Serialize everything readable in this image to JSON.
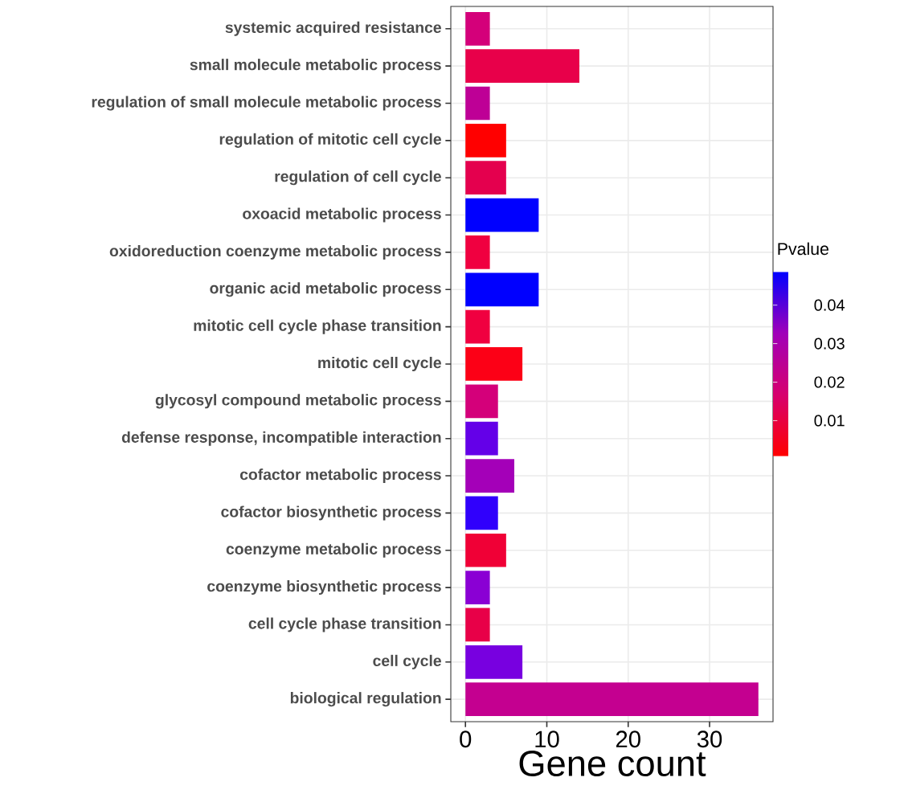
{
  "chart_data": {
    "type": "bar",
    "orientation": "horizontal",
    "xlabel": "Gene count",
    "clabel": "Pvalue",
    "categories": [
      "systemic acquired resistance",
      "small molecule metabolic process",
      "regulation of small molecule metabolic process",
      "regulation of mitotic cell cycle",
      "regulation of cell cycle",
      "oxoacid metabolic process",
      "oxidoreduction coenzyme metabolic process",
      "organic acid metabolic process",
      "mitotic cell cycle phase transition",
      "mitotic cell cycle",
      "glycosyl compound metabolic process",
      "defense response, incompatible interaction",
      "cofactor metabolic process",
      "cofactor biosynthetic process",
      "coenzyme metabolic process",
      "coenzyme biosynthetic process",
      "cell cycle phase transition",
      "cell cycle",
      "biological regulation"
    ],
    "values": [
      3,
      14,
      3,
      5,
      5,
      9,
      3,
      9,
      3,
      7,
      4,
      4,
      6,
      4,
      5,
      3,
      3,
      7,
      36
    ],
    "colors": [
      "#d4007a",
      "#e8004a",
      "#be0096",
      "#ff0000",
      "#e4004e",
      "#0000ff",
      "#f00040",
      "#0000ff",
      "#f00040",
      "#fc0016",
      "#d4007a",
      "#6400e8",
      "#a400b8",
      "#3000fc",
      "#f00036",
      "#8a00d4",
      "#e80048",
      "#7800e0",
      "#c40090"
    ],
    "xlim": [
      -1.8,
      37.8
    ],
    "xticks": [
      0,
      10,
      20,
      30
    ],
    "grid": true,
    "clim": [
      0.0007,
      0.0487
    ],
    "cticks": [
      0.01,
      0.02,
      0.03,
      0.04
    ]
  }
}
